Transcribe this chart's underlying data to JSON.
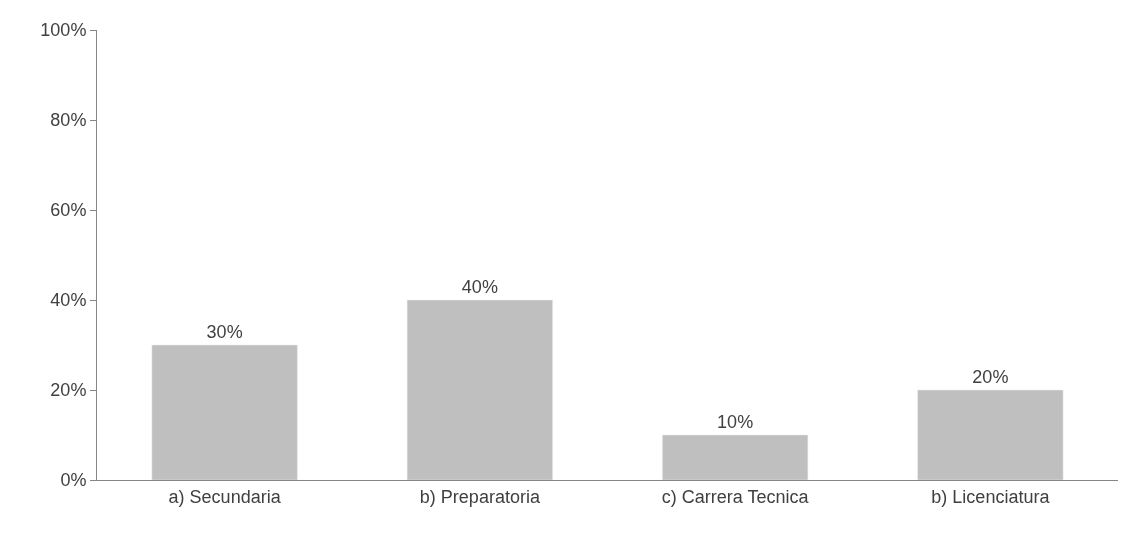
{
  "chart_data": {
    "type": "bar",
    "categories": [
      "a) Secundaria",
      "b) Preparatoria",
      "c) Carrera Tecnica",
      "b) Licenciatura"
    ],
    "values": [
      30,
      40,
      10,
      20
    ],
    "color": "#bfbfbf",
    "value_labels": [
      "30%",
      "40%",
      "10%",
      "20%"
    ],
    "ylim": [
      0,
      100
    ],
    "yticks": [
      {
        "value": 0,
        "label": "0%"
      },
      {
        "value": 20,
        "label": "20%"
      },
      {
        "value": 40,
        "label": "40%"
      },
      {
        "value": 60,
        "label": "60%"
      },
      {
        "value": 80,
        "label": "80%"
      },
      {
        "value": 100,
        "label": "100%"
      }
    ],
    "legend": false
  }
}
